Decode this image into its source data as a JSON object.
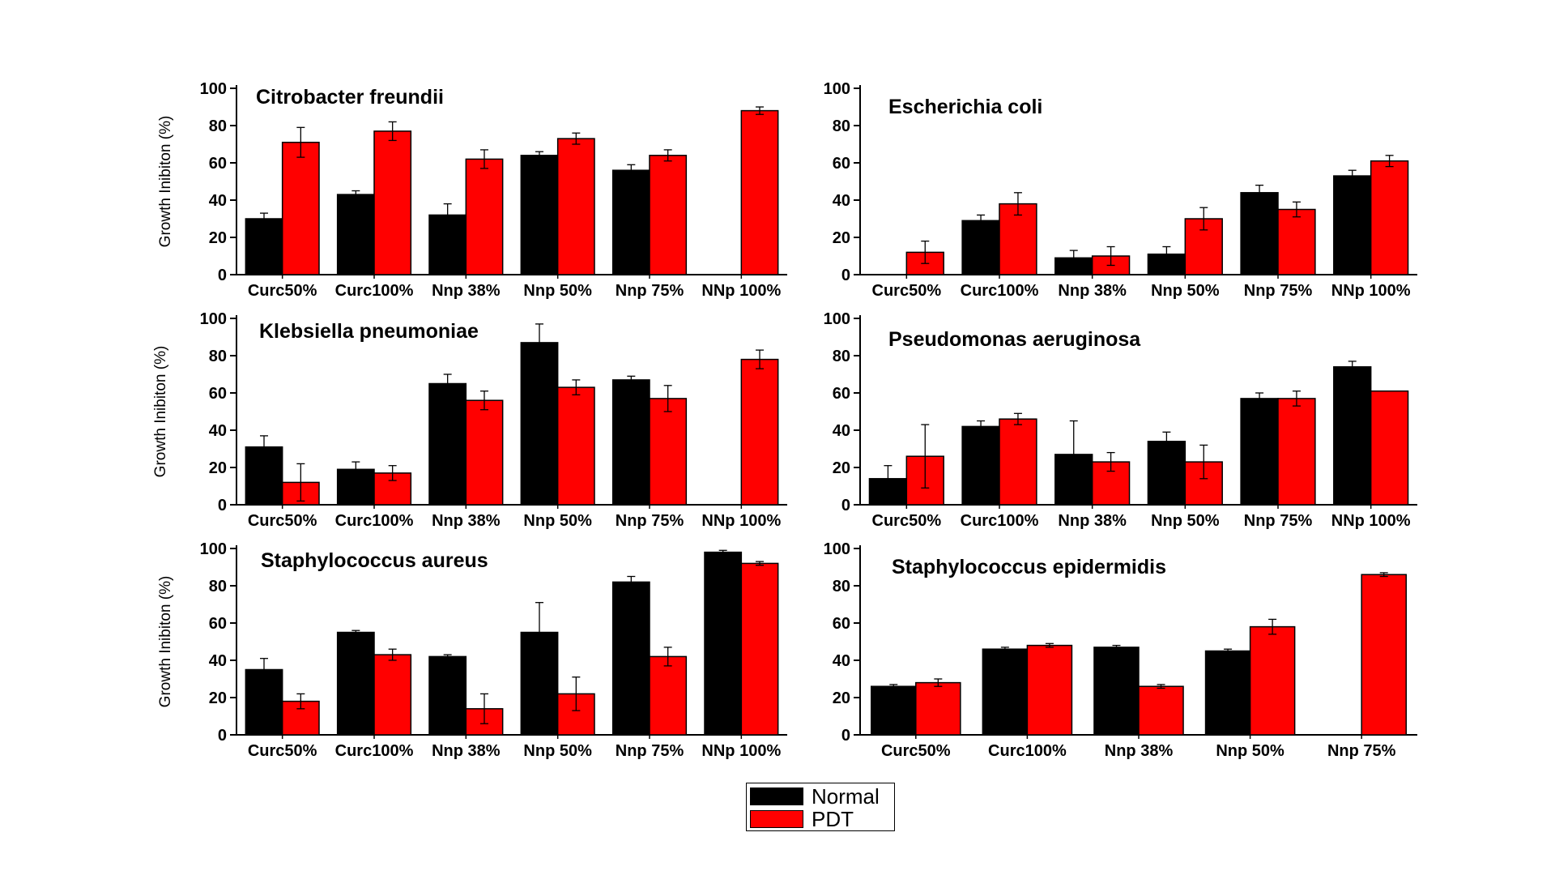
{
  "chart_data": [
    {
      "type": "bar",
      "title": "Citrobacter freundii",
      "ylabel": "Growth Inibiton (%)",
      "ylim": [
        0,
        100
      ],
      "yticks": [
        "0",
        "20",
        "40",
        "60",
        "80",
        "100"
      ],
      "categories": [
        "Curc50%",
        "Curc100%",
        "Nnp 38%",
        "Nnp 50%",
        "Nnp 75%",
        "NNp 100%"
      ],
      "series": [
        {
          "name": "Normal",
          "values": [
            30,
            43,
            32,
            64,
            56,
            null
          ],
          "errors": [
            3,
            2,
            6,
            2,
            3,
            null
          ]
        },
        {
          "name": "PDT",
          "values": [
            71,
            77,
            62,
            73,
            64,
            88
          ],
          "errors": [
            8,
            5,
            5,
            3,
            3,
            2
          ]
        }
      ]
    },
    {
      "type": "bar",
      "title": "Escherichia coli",
      "ylabel": "",
      "ylim": [
        0,
        100
      ],
      "yticks": [
        "0",
        "20",
        "40",
        "60",
        "80",
        "100"
      ],
      "categories": [
        "Curc50%",
        "Curc100%",
        "Nnp 38%",
        "Nnp 50%",
        "Nnp 75%",
        "NNp 100%"
      ],
      "series": [
        {
          "name": "Normal",
          "values": [
            null,
            29,
            9,
            11,
            44,
            53
          ],
          "errors": [
            null,
            3,
            4,
            4,
            4,
            3
          ]
        },
        {
          "name": "PDT",
          "values": [
            12,
            38,
            10,
            30,
            35,
            61
          ],
          "errors": [
            6,
            6,
            5,
            6,
            4,
            3
          ]
        }
      ]
    },
    {
      "type": "bar",
      "title": "Klebsiella pneumoniae",
      "ylabel": "Growth Inibiton (%)",
      "ylim": [
        0,
        100
      ],
      "yticks": [
        "0",
        "20",
        "40",
        "60",
        "80",
        "100"
      ],
      "categories": [
        "Curc50%",
        "Curc100%",
        "Nnp 38%",
        "Nnp 50%",
        "Nnp 75%",
        "NNp 100%"
      ],
      "series": [
        {
          "name": "Normal",
          "values": [
            31,
            19,
            65,
            87,
            67,
            null
          ],
          "errors": [
            6,
            4,
            5,
            10,
            2,
            null
          ]
        },
        {
          "name": "PDT",
          "values": [
            12,
            17,
            56,
            63,
            57,
            78
          ],
          "errors": [
            10,
            4,
            5,
            4,
            7,
            5
          ]
        }
      ]
    },
    {
      "type": "bar",
      "title": "Pseudomonas aeruginosa",
      "ylabel": "",
      "ylim": [
        0,
        100
      ],
      "yticks": [
        "0",
        "20",
        "40",
        "60",
        "80",
        "100"
      ],
      "categories": [
        "Curc50%",
        "Curc100%",
        "Nnp 38%",
        "Nnp 50%",
        "Nnp 75%",
        "NNp 100%"
      ],
      "series": [
        {
          "name": "Normal",
          "values": [
            14,
            42,
            27,
            34,
            57,
            74
          ],
          "errors": [
            7,
            3,
            18,
            5,
            3,
            3
          ]
        },
        {
          "name": "PDT",
          "values": [
            26,
            46,
            23,
            23,
            57,
            61
          ],
          "errors": [
            17,
            3,
            5,
            9,
            4,
            0
          ]
        }
      ]
    },
    {
      "type": "bar",
      "title": "Staphylococcus aureus",
      "ylabel": "Growth Inibiton (%)",
      "ylim": [
        0,
        100
      ],
      "yticks": [
        "0",
        "20",
        "40",
        "60",
        "80",
        "100"
      ],
      "categories": [
        "Curc50%",
        "Curc100%",
        "Nnp 38%",
        "Nnp 50%",
        "Nnp 75%",
        "NNp 100%"
      ],
      "series": [
        {
          "name": "Normal",
          "values": [
            35,
            55,
            42,
            55,
            82,
            98
          ],
          "errors": [
            6,
            1,
            1,
            16,
            3,
            1
          ]
        },
        {
          "name": "PDT",
          "values": [
            18,
            43,
            14,
            22,
            42,
            92
          ],
          "errors": [
            4,
            3,
            8,
            9,
            5,
            1
          ]
        }
      ]
    },
    {
      "type": "bar",
      "title": "Staphylococcus epidermidis",
      "ylabel": "",
      "ylim": [
        0,
        100
      ],
      "yticks": [
        "0",
        "20",
        "40",
        "60",
        "80",
        "100"
      ],
      "categories": [
        "Curc50%",
        "Curc100%",
        "Nnp 38%",
        "Nnp 50%",
        "Nnp 75%"
      ],
      "series": [
        {
          "name": "Normal",
          "values": [
            26,
            46,
            47,
            45,
            null
          ],
          "errors": [
            1,
            1,
            1,
            1,
            null
          ]
        },
        {
          "name": "PDT",
          "values": [
            28,
            48,
            26,
            58,
            86
          ],
          "errors": [
            2,
            1,
            1,
            4,
            1
          ]
        }
      ]
    }
  ],
  "legend": {
    "items": [
      {
        "name": "Normal",
        "color": "#000000"
      },
      {
        "name": "PDT",
        "color": "#ff0000"
      }
    ]
  }
}
